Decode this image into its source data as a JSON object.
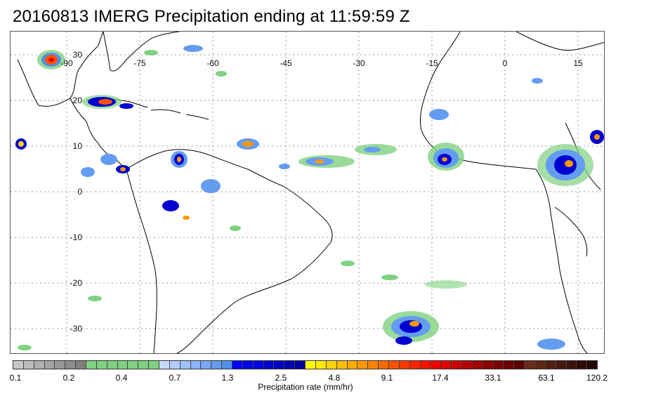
{
  "title": "20160813 IMERG Precipitation ending at 11:59:59 Z",
  "map": {
    "lon_labels": [
      "-90",
      "-75",
      "-60",
      "-45",
      "-30",
      "-15",
      "0",
      "15"
    ],
    "lat_labels": [
      "30",
      "20",
      "10",
      "0",
      "-10",
      "-20",
      "-30"
    ],
    "gridlines": "dotted"
  },
  "colorbar": {
    "title": "Precipitation rate (mm/hr)",
    "tick_labels": [
      "0.1",
      "0.2",
      "0.4",
      "0.7",
      "1.3",
      "2.5",
      "4.8",
      "9.1",
      "17.4",
      "33.1",
      "63.1",
      "120.2"
    ],
    "colors": [
      "#c8c8c8",
      "#bcbcbc",
      "#b0b0b0",
      "#a4a4a4",
      "#989898",
      "#8c8c8c",
      "#808080",
      "#7fd27f",
      "#7fd27f",
      "#7fd27f",
      "#7fd27f",
      "#7fd27f",
      "#7fd27f",
      "#7fd27f",
      "#c8d8ff",
      "#b4ccff",
      "#a0c0ff",
      "#8cb4ff",
      "#78a8f8",
      "#649cf0",
      "#5090e8",
      "#0000ff",
      "#0000f0",
      "#0000e0",
      "#0000d0",
      "#0000c0",
      "#0000b0",
      "#0000a0",
      "#ffff00",
      "#ffe800",
      "#ffd400",
      "#ffc000",
      "#ffac00",
      "#ff9800",
      "#ff8400",
      "#ff6a00",
      "#ff5000",
      "#ff3a00",
      "#ff2400",
      "#ff1000",
      "#ee0000",
      "#dd0000",
      "#c80000",
      "#b40000",
      "#a00000",
      "#8c0000",
      "#7a0000",
      "#6a0000",
      "#5a0000",
      "#6b2a1a",
      "#5e2416",
      "#521e12",
      "#46180e",
      "#3a120a",
      "#300c06",
      "#260604"
    ]
  }
}
